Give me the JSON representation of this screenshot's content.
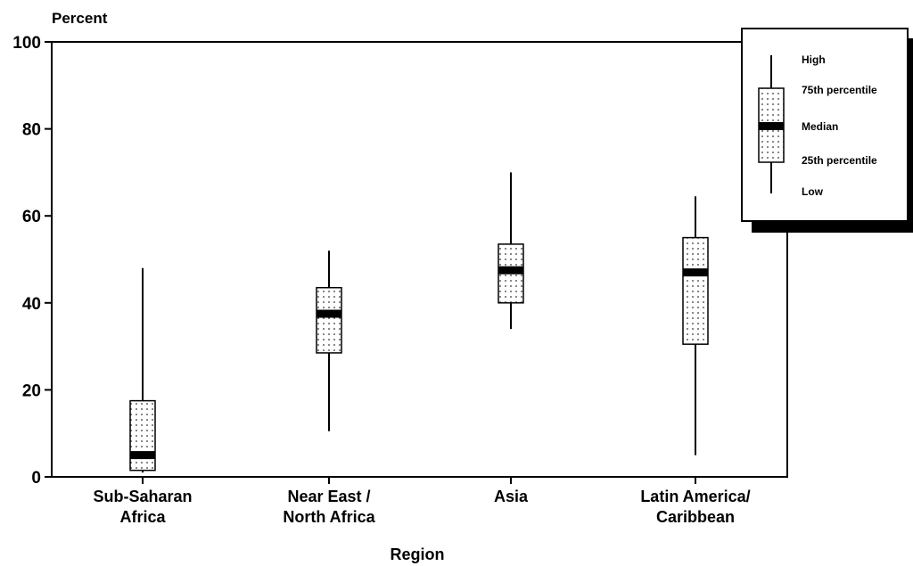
{
  "chart_data": {
    "type": "boxplot",
    "ylabel": "Percent",
    "xlabel": "Region",
    "ylim": [
      0,
      100
    ],
    "yticks": [
      0,
      20,
      40,
      60,
      80,
      100
    ],
    "categories": [
      {
        "line1": "Sub-Saharan",
        "line2": "Africa"
      },
      {
        "line1": "Near East /",
        "line2": "North Africa"
      },
      {
        "line1": "Asia",
        "line2": ""
      },
      {
        "line1": "Latin America/",
        "line2": "Caribbean"
      }
    ],
    "boxes": [
      {
        "low": 1,
        "q1": 1.5,
        "median": 5,
        "q3": 17.5,
        "high": 48
      },
      {
        "low": 10.5,
        "q1": 28.5,
        "median": 37.5,
        "q3": 43.5,
        "high": 52
      },
      {
        "low": 34,
        "q1": 40,
        "median": 47.5,
        "q3": 53.5,
        "high": 70
      },
      {
        "low": 5,
        "q1": 30.5,
        "median": 47,
        "q3": 55,
        "high": 64.5
      }
    ],
    "grid": false,
    "legend": {
      "position": "top-right",
      "entries": [
        "High",
        "75th percentile",
        "Median",
        "25th percentile",
        "Low"
      ]
    }
  }
}
